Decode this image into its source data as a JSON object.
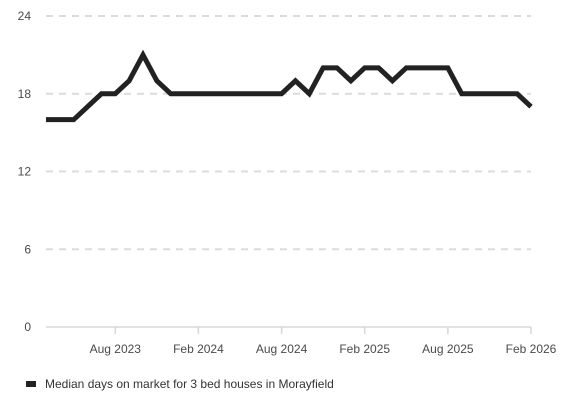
{
  "chart_data": {
    "type": "line",
    "title": "",
    "xlabel": "",
    "ylabel": "",
    "ylim": [
      0,
      24
    ],
    "yticks": [
      0,
      6,
      12,
      18,
      24
    ],
    "xticks": [
      {
        "label": "Aug 2023",
        "index": 5
      },
      {
        "label": "Feb 2024",
        "index": 11
      },
      {
        "label": "Aug 2024",
        "index": 17
      },
      {
        "label": "Feb 2025",
        "index": 23
      },
      {
        "label": "Aug 2025",
        "index": 29
      },
      {
        "label": "Feb 2026",
        "index": 35
      }
    ],
    "grid": true,
    "legend_position": "bottom-left",
    "series": [
      {
        "name": "Median days on market for 3 bed houses in Morayfield",
        "color": "#222222",
        "x": [
          "Mar 2023",
          "Apr 2023",
          "May 2023",
          "Jun 2023",
          "Jul 2023",
          "Aug 2023",
          "Sep 2023",
          "Oct 2023",
          "Nov 2023",
          "Dec 2023",
          "Jan 2024",
          "Feb 2024",
          "Mar 2024",
          "Apr 2024",
          "May 2024",
          "Jun 2024",
          "Jul 2024",
          "Aug 2024",
          "Sep 2024",
          "Oct 2024",
          "Nov 2024",
          "Dec 2024",
          "Jan 2025",
          "Feb 2025",
          "Mar 2025",
          "Apr 2025",
          "May 2025",
          "Jun 2025",
          "Jul 2025",
          "Aug 2025",
          "Sep 2025",
          "Oct 2025",
          "Nov 2025",
          "Dec 2025",
          "Jan 2026",
          "Feb 2026"
        ],
        "values": [
          16,
          16,
          16,
          17,
          18,
          18,
          19,
          21,
          19,
          18,
          18,
          18,
          18,
          18,
          18,
          18,
          18,
          18,
          19,
          18,
          20,
          20,
          19,
          20,
          20,
          19,
          20,
          20,
          20,
          20,
          18,
          18,
          18,
          18,
          18,
          17
        ]
      }
    ]
  }
}
